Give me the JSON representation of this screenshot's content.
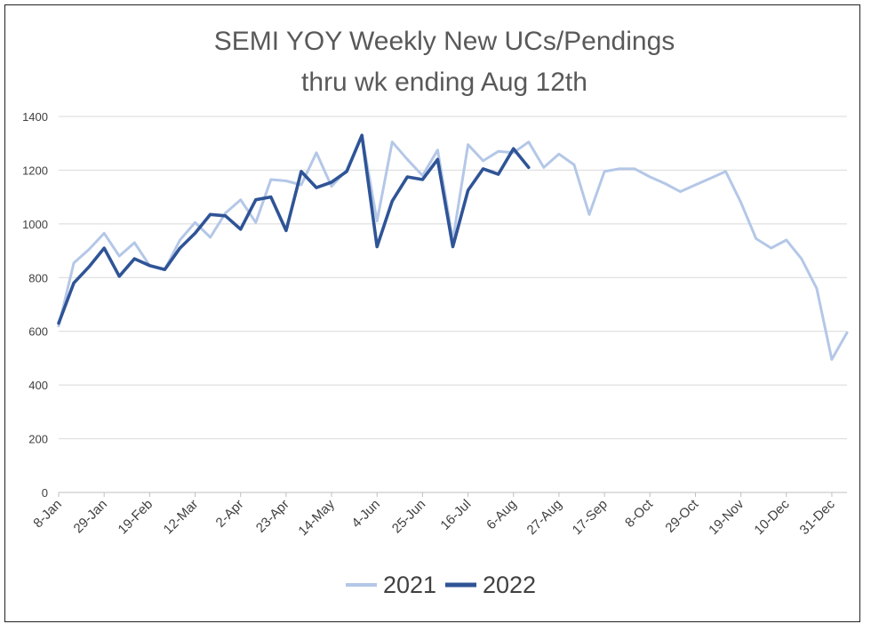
{
  "chart_data": {
    "type": "line",
    "title": "SEMI YOY Weekly New UCs/Pendings",
    "subtitle": "thru wk ending Aug 12th",
    "xlabel": "",
    "ylabel": "",
    "ylim": [
      0,
      1400
    ],
    "yticks": [
      0,
      200,
      400,
      600,
      800,
      1000,
      1200,
      1400
    ],
    "x_tick_labels": [
      "8-Jan",
      "29-Jan",
      "19-Feb",
      "12-Mar",
      "2-Apr",
      "23-Apr",
      "14-May",
      "4-Jun",
      "25-Jun",
      "16-Jul",
      "6-Aug",
      "27-Aug",
      "17-Sep",
      "8-Oct",
      "29-Oct",
      "19-Nov",
      "10-Dec",
      "31-Dec"
    ],
    "legend_position": "bottom",
    "series": [
      {
        "name": "2021",
        "color": "#b4c7e7",
        "values": [
          620,
          855,
          905,
          965,
          880,
          930,
          845,
          830,
          940,
          1005,
          950,
          1040,
          1090,
          1005,
          1165,
          1160,
          1145,
          1265,
          1140,
          1200,
          1330,
          1010,
          1305,
          1240,
          1180,
          1275,
          940,
          1295,
          1235,
          1270,
          1265,
          1305,
          1210,
          1260,
          1220,
          1035,
          1195,
          1205,
          1205,
          1175,
          1150,
          1120,
          1145,
          1170,
          1195,
          1080,
          945,
          910,
          940,
          870,
          760,
          495,
          595
        ]
      },
      {
        "name": "2022",
        "color": "#2f5496",
        "values": [
          630,
          780,
          840,
          910,
          805,
          870,
          845,
          830,
          910,
          965,
          1035,
          1030,
          980,
          1090,
          1100,
          975,
          1195,
          1135,
          1155,
          1195,
          1330,
          915,
          1085,
          1175,
          1165,
          1240,
          915,
          1125,
          1205,
          1185,
          1280,
          1210
        ]
      }
    ]
  }
}
